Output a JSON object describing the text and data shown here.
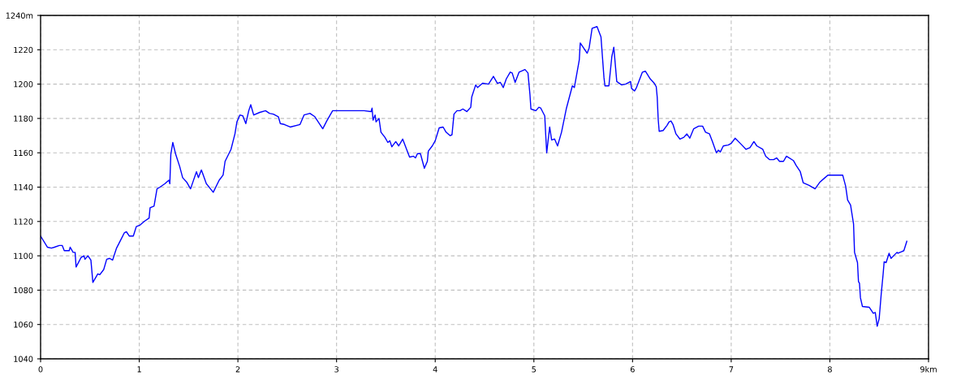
{
  "chart_data": {
    "type": "line",
    "grid": true,
    "xlim": [
      0,
      9
    ],
    "ylim": [
      1040,
      1240
    ],
    "xticks": [
      0,
      1,
      2,
      3,
      4,
      5,
      6,
      7,
      8,
      {
        "value": 9,
        "label": "9km"
      }
    ],
    "yticks": [
      1040,
      1060,
      1080,
      1100,
      1120,
      1140,
      1160,
      1180,
      1200,
      1220,
      {
        "value": 1240,
        "label": "1240m"
      }
    ],
    "series": [
      {
        "color": "#0000ff",
        "x": [
          0,
          0.07,
          0.11,
          0.14,
          0.19,
          0.22,
          0.24,
          0.29,
          0.3,
          0.33,
          0.35,
          0.36,
          0.41,
          0.44,
          0.45,
          0.48,
          0.51,
          0.53,
          0.58,
          0.6,
          0.64,
          0.67,
          0.7,
          0.73,
          0.77,
          0.81,
          0.85,
          0.87,
          0.9,
          0.94,
          0.97,
          1.01,
          1.05,
          1.1,
          1.11,
          1.15,
          1.18,
          1.21,
          1.26,
          1.3,
          1.31,
          1.32,
          1.34,
          1.37,
          1.41,
          1.44,
          1.48,
          1.52,
          1.58,
          1.6,
          1.63,
          1.68,
          1.75,
          1.81,
          1.85,
          1.87,
          1.93,
          1.97,
          1.99,
          2.02,
          2.05,
          2.08,
          2.11,
          2.13,
          2.16,
          2.22,
          2.28,
          2.32,
          2.36,
          2.41,
          2.43,
          2.47,
          2.53,
          2.63,
          2.67,
          2.73,
          2.78,
          2.86,
          2.9,
          2.96,
          2.99,
          3.28,
          3.35,
          3.36,
          3.37,
          3.39,
          3.4,
          3.43,
          3.45,
          3.49,
          3.52,
          3.54,
          3.56,
          3.6,
          3.63,
          3.67,
          3.71,
          3.74,
          3.78,
          3.8,
          3.82,
          3.85,
          3.89,
          3.92,
          3.93,
          3.97,
          4.0,
          4.04,
          4.08,
          4.11,
          4.15,
          4.17,
          4.19,
          4.22,
          4.25,
          4.28,
          4.32,
          4.36,
          4.37,
          4.41,
          4.43,
          4.48,
          4.54,
          4.59,
          4.63,
          4.66,
          4.69,
          4.72,
          4.76,
          4.78,
          4.81,
          4.85,
          4.91,
          4.94,
          4.96,
          4.97,
          5.02,
          5.05,
          5.07,
          5.11,
          5.12,
          5.13,
          5.16,
          5.18,
          5.21,
          5.24,
          5.28,
          5.33,
          5.39,
          5.41,
          5.46,
          5.47,
          5.54,
          5.56,
          5.59,
          5.64,
          5.68,
          5.71,
          5.72,
          5.76,
          5.79,
          5.81,
          5.84,
          5.89,
          5.93,
          5.98,
          5.99,
          6.02,
          6.04,
          6.06,
          6.1,
          6.13,
          6.18,
          6.22,
          6.24,
          6.25,
          6.26,
          6.27,
          6.31,
          6.35,
          6.37,
          6.39,
          6.41,
          6.44,
          6.48,
          6.52,
          6.55,
          6.58,
          6.62,
          6.67,
          6.71,
          6.74,
          6.78,
          6.81,
          6.85,
          6.87,
          6.89,
          6.92,
          6.97,
          7.0,
          7.04,
          7.1,
          7.15,
          7.19,
          7.23,
          7.26,
          7.32,
          7.35,
          7.39,
          7.43,
          7.46,
          7.49,
          7.53,
          7.56,
          7.63,
          7.66,
          7.7,
          7.73,
          7.79,
          7.85,
          7.9,
          7.95,
          7.98,
          8.13,
          8.16,
          8.18,
          8.21,
          8.24,
          8.25,
          8.28,
          8.29,
          8.3,
          8.31,
          8.33,
          8.4,
          8.44,
          8.46,
          8.48,
          8.5,
          8.52,
          8.54,
          8.55,
          8.57,
          8.6,
          8.62,
          8.68,
          8.69,
          8.73,
          8.75,
          8.78
        ],
        "values": [
          1111.5,
          1105,
          1104.5,
          1105,
          1106,
          1106,
          1103,
          1103,
          1105,
          1102,
          1102,
          1093.5,
          1099,
          1100,
          1098,
          1100,
          1097.5,
          1084.5,
          1089.5,
          1089,
          1092,
          1098,
          1098.5,
          1097.5,
          1104.5,
          1109,
          1113.5,
          1114,
          1111.5,
          1111.5,
          1117,
          1118,
          1120,
          1122,
          1128,
          1129,
          1139,
          1140,
          1142,
          1144,
          1142,
          1159,
          1166,
          1159,
          1152,
          1145.5,
          1143,
          1139,
          1149,
          1145.5,
          1150,
          1142,
          1137,
          1144,
          1147,
          1155,
          1162,
          1171,
          1178,
          1182,
          1181.5,
          1177,
          1184.5,
          1188,
          1182,
          1183.5,
          1184.5,
          1183,
          1182.5,
          1181,
          1177,
          1176.5,
          1175,
          1176.5,
          1182,
          1183,
          1181,
          1174,
          1178.5,
          1184.5,
          1184.5,
          1184.5,
          1184,
          1186,
          1179,
          1182,
          1178,
          1180,
          1172,
          1169,
          1166,
          1167,
          1163.5,
          1166.5,
          1164,
          1168,
          1162,
          1157.5,
          1158,
          1157,
          1159.5,
          1159.5,
          1151,
          1155,
          1161,
          1164,
          1167,
          1174.5,
          1175,
          1172,
          1170,
          1170.5,
          1182.5,
          1184.5,
          1184.5,
          1185.5,
          1184,
          1186.5,
          1192.5,
          1199.5,
          1198,
          1200.5,
          1200,
          1204.5,
          1200.5,
          1201,
          1198,
          1203,
          1207,
          1206.5,
          1201,
          1207,
          1208.5,
          1206.5,
          1194,
          1185.5,
          1184.5,
          1186.5,
          1186,
          1181.5,
          1170.5,
          1160,
          1175,
          1167.5,
          1168,
          1164,
          1172,
          1186,
          1199,
          1198,
          1214,
          1224,
          1218,
          1221,
          1232.5,
          1233.5,
          1227.5,
          1204,
          1199,
          1199,
          1216,
          1221.5,
          1201.5,
          1199.5,
          1200,
          1201.5,
          1197.5,
          1196,
          1198,
          1201,
          1207,
          1207.5,
          1203,
          1200.5,
          1198.5,
          1192.5,
          1179.5,
          1172.5,
          1173,
          1176,
          1178,
          1178.5,
          1176.5,
          1171,
          1168,
          1169,
          1171,
          1168.5,
          1174,
          1175.5,
          1175.5,
          1172,
          1171,
          1166.5,
          1160,
          1161.5,
          1160.5,
          1164,
          1164.5,
          1165.5,
          1168.5,
          1165,
          1162,
          1163,
          1166.5,
          1164,
          1162,
          1158,
          1156,
          1156,
          1157,
          1155,
          1155,
          1158,
          1155.5,
          1152.5,
          1149,
          1142.5,
          1141,
          1139,
          1143,
          1145.5,
          1147,
          1147,
          1140.5,
          1132.5,
          1129.5,
          1118.5,
          1102,
          1096,
          1085,
          1084,
          1075.5,
          1070.5,
          1070,
          1066.5,
          1067,
          1059,
          1063.5,
          1077.5,
          1089.5,
          1096.5,
          1096,
          1101.5,
          1098.5,
          1102,
          1101.5,
          1102.5,
          1103,
          1108.5
        ]
      }
    ],
    "line_style": "solid",
    "marker": "none"
  }
}
